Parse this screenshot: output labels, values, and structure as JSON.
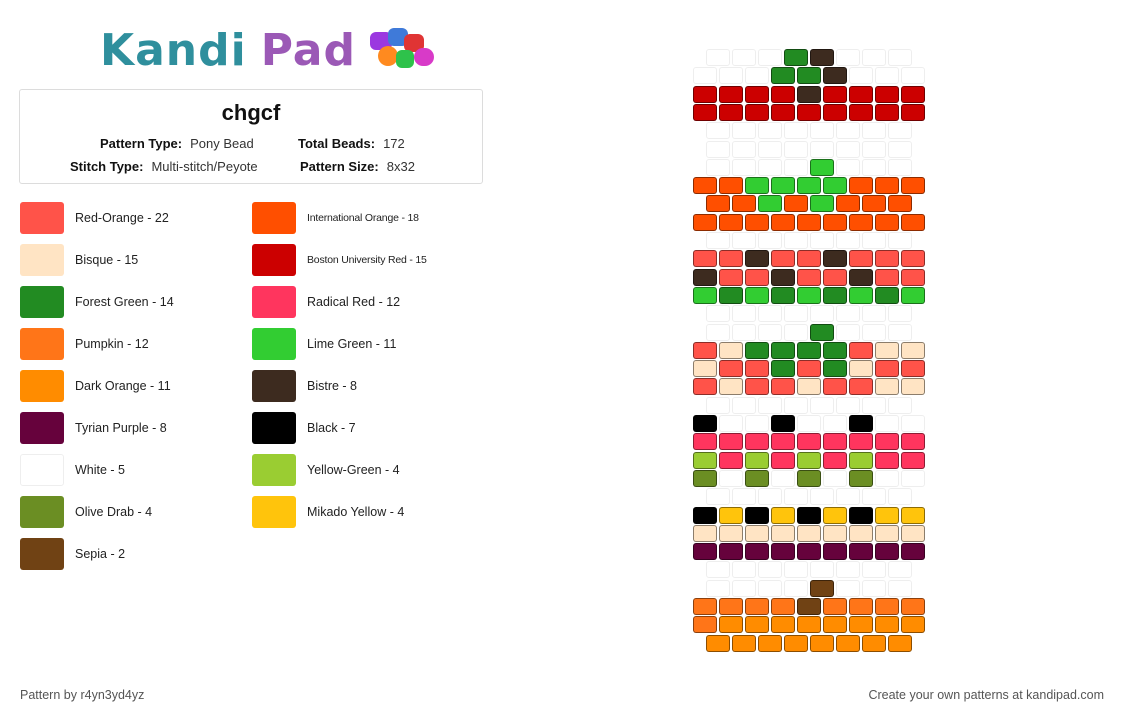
{
  "logo": {
    "part1": "Kandi",
    "part2": "Pad"
  },
  "title": "chgcf",
  "info": {
    "pattern_type_label": "Pattern Type:",
    "pattern_type_value": "Pony Bead",
    "total_beads_label": "Total Beads:",
    "total_beads_value": "172",
    "stitch_type_label": "Stitch Type:",
    "stitch_type_value": "Multi-stitch/Peyote",
    "pattern_size_label": "Pattern Size:",
    "pattern_size_value": "8x32"
  },
  "legend": [
    {
      "label": "Red-Orange - 22",
      "color": "#FF5349"
    },
    {
      "label": "International Orange - 18",
      "color": "#FF4F00"
    },
    {
      "label": "Bisque - 15",
      "color": "#FFE4C4"
    },
    {
      "label": "Boston University Red - 15",
      "color": "#CC0000"
    },
    {
      "label": "Forest Green - 14",
      "color": "#228B22"
    },
    {
      "label": "Radical Red - 12",
      "color": "#FF355E"
    },
    {
      "label": "Pumpkin - 12",
      "color": "#FF7518"
    },
    {
      "label": "Lime Green - 11",
      "color": "#32CD32"
    },
    {
      "label": "Dark Orange - 11",
      "color": "#FF8C00"
    },
    {
      "label": "Bistre - 8",
      "color": "#3D2B1F"
    },
    {
      "label": "Tyrian Purple - 8",
      "color": "#66023C"
    },
    {
      "label": "Black - 7",
      "color": "#000000"
    },
    {
      "label": "White - 5",
      "color": "#FFFFFF"
    },
    {
      "label": "Yellow-Green - 4",
      "color": "#9ACD32"
    },
    {
      "label": "Olive Drab - 4",
      "color": "#6B8E23"
    },
    {
      "label": "Mikado Yellow - 4",
      "color": "#FFC40C"
    },
    {
      "label": "Sepia - 2",
      "color": "#704214"
    }
  ],
  "pattern": {
    "palette": {
      "W": "#FFFFFF",
      "R": "#CC0000",
      "F": "#228B22",
      "B": "#3D2B1F",
      "O": "#FF4F00",
      "L": "#32CD32",
      "E": "#FF5349",
      "Q": "#FFE4C4",
      "K": "#000000",
      "D": "#FF355E",
      "Y": "#9ACD32",
      "V": "#6B8E23",
      "M": "#FFC40C",
      "T": "#66023C",
      "S": "#704214",
      "P": "#FF7518",
      "A": "#FF8C00"
    },
    "rows": [
      "WWWFBWWW",
      "WWWFFBWWW",
      "RRRRBRRRR",
      "RRRRRRRRR",
      "WWWWWWWW",
      "WWWWWWWW",
      "WWWWLWWW",
      "OOLLLLOOO",
      "OOLOLOOO",
      "OOOOOOOOO",
      "WWWWWWWW",
      "EEBEEBEEE",
      "BEEBEEBEE",
      "LFLFLFLFL",
      "WWWWWWWW",
      "WWWWFWWW",
      "EQFFFFEQQ",
      "QEEFEFQEE",
      "EQEEQEEQQ",
      "WWWWWWWW",
      "KWWKWWKWW",
      "DDDDDDDDD",
      "YDYDYDYDD",
      "VWVWVWVWW",
      "WWWWWWWW",
      "KMKMKMKMM",
      "QQQQQQQQQ",
      "TTTTTTTTT",
      "WWWWWWWW",
      "WWWWSWWW",
      "PPPPSPPPP",
      "PAAAAAAAA",
      "AAAAAAAA"
    ]
  },
  "footer": {
    "credit": "Pattern by r4yn3yd4yz",
    "cta": "Create your own patterns at kandipad.com"
  }
}
